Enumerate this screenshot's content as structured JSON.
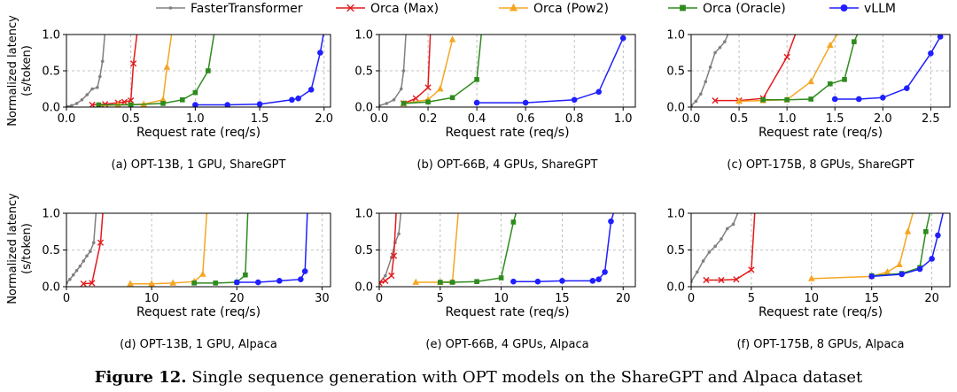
{
  "legend": [
    {
      "name": "FasterTransformer",
      "color": "#808080",
      "marker": "dot"
    },
    {
      "name": "Orca (Max)",
      "color": "#e41a1c",
      "marker": "x"
    },
    {
      "name": "Orca (Pow2)",
      "color": "#f5a623",
      "marker": "triangle"
    },
    {
      "name": "Orca (Oracle)",
      "color": "#2e8b1e",
      "marker": "square"
    },
    {
      "name": "vLLM",
      "color": "#1f1fff",
      "marker": "circle"
    }
  ],
  "ylabel_line1": "Normalized latency",
  "ylabel_line2": "(s/token)",
  "figure_caption": {
    "label": "Figure 12.",
    "text": " Single sequence generation with OPT models on the ShareGPT and Alpaca dataset"
  },
  "chart_data": [
    {
      "type": "line",
      "subtitle": "(a) OPT-13B, 1 GPU, ShareGPT",
      "xlabel": "Request rate (req/s)",
      "ylabel": "Normalized latency (s/token)",
      "xlim": [
        0.0,
        2.05
      ],
      "ylim": [
        0.0,
        1.0
      ],
      "xticks": [
        0.0,
        0.5,
        1.0,
        1.5,
        2.0
      ],
      "xtick_labels": [
        "0.0",
        "0.5",
        "1.0",
        "1.5",
        "2.0"
      ],
      "yticks": [
        0.0,
        0.5,
        1.0
      ],
      "ytick_labels": [
        "0.0",
        "0.5",
        "1.0"
      ],
      "grid": true,
      "series": [
        {
          "name": "FasterTransformer",
          "x": [
            0.0,
            0.04,
            0.08,
            0.12,
            0.16,
            0.2,
            0.24,
            0.26,
            0.28,
            0.3
          ],
          "y": [
            0.01,
            0.02,
            0.05,
            0.1,
            0.17,
            0.25,
            0.27,
            0.42,
            0.63,
            1.05
          ]
        },
        {
          "name": "Orca (Max)",
          "x": [
            0.2,
            0.3,
            0.4,
            0.45,
            0.5,
            0.52,
            0.55
          ],
          "y": [
            0.03,
            0.04,
            0.06,
            0.07,
            0.09,
            0.6,
            1.05
          ]
        },
        {
          "name": "Orca (Pow2)",
          "x": [
            0.25,
            0.4,
            0.6,
            0.75,
            0.78,
            0.82
          ],
          "y": [
            0.02,
            0.03,
            0.04,
            0.1,
            0.55,
            1.05
          ]
        },
        {
          "name": "Orca (Oracle)",
          "x": [
            0.25,
            0.5,
            0.75,
            0.9,
            1.0,
            1.1,
            1.15
          ],
          "y": [
            0.03,
            0.03,
            0.05,
            0.1,
            0.2,
            0.5,
            1.05
          ]
        },
        {
          "name": "vLLM",
          "x": [
            1.0,
            1.25,
            1.5,
            1.75,
            1.8,
            1.9,
            1.97,
            2.0
          ],
          "y": [
            0.03,
            0.03,
            0.04,
            0.1,
            0.12,
            0.24,
            0.75,
            1.05
          ]
        }
      ]
    },
    {
      "type": "line",
      "subtitle": "(b) OPT-66B, 4 GPUs, ShareGPT",
      "xlabel": "Request rate (req/s)",
      "ylabel": "Normalized latency (s/token)",
      "xlim": [
        0.0,
        1.05
      ],
      "ylim": [
        0.0,
        1.0
      ],
      "xticks": [
        0.0,
        0.2,
        0.4,
        0.6,
        0.8,
        1.0
      ],
      "xtick_labels": [
        "0.0",
        "0.2",
        "0.4",
        "0.6",
        "0.8",
        "1.0"
      ],
      "yticks": [
        0.0,
        0.5,
        1.0
      ],
      "ytick_labels": [
        "0.0",
        "0.5",
        "1.0"
      ],
      "grid": true,
      "series": [
        {
          "name": "FasterTransformer",
          "x": [
            0.0,
            0.03,
            0.06,
            0.09,
            0.1,
            0.11
          ],
          "y": [
            0.02,
            0.05,
            0.1,
            0.25,
            0.5,
            1.05
          ]
        },
        {
          "name": "Orca (Max)",
          "x": [
            0.1,
            0.15,
            0.2,
            0.21
          ],
          "y": [
            0.05,
            0.12,
            0.27,
            1.05
          ]
        },
        {
          "name": "Orca (Pow2)",
          "x": [
            0.1,
            0.2,
            0.25,
            0.3
          ],
          "y": [
            0.05,
            0.1,
            0.25,
            0.93
          ]
        },
        {
          "name": "Orca (Oracle)",
          "x": [
            0.1,
            0.2,
            0.3,
            0.4,
            0.42
          ],
          "y": [
            0.05,
            0.07,
            0.13,
            0.38,
            1.05
          ]
        },
        {
          "name": "vLLM",
          "x": [
            0.4,
            0.6,
            0.8,
            0.9,
            1.0
          ],
          "y": [
            0.06,
            0.06,
            0.1,
            0.21,
            0.95
          ]
        }
      ]
    },
    {
      "type": "line",
      "subtitle": "(c) OPT-175B, 8 GPUs, ShareGPT",
      "xlabel": "Request rate (req/s)",
      "ylabel": "Normalized latency (s/token)",
      "xlim": [
        0.0,
        2.7
      ],
      "ylim": [
        0.0,
        1.0
      ],
      "xticks": [
        0.0,
        0.5,
        1.0,
        1.5,
        2.0,
        2.5
      ],
      "xtick_labels": [
        "0.0",
        "0.5",
        "1.0",
        "1.5",
        "2.0",
        "2.5"
      ],
      "yticks": [
        0.0,
        0.5,
        1.0
      ],
      "ytick_labels": [
        "0.0",
        "0.5",
        "1.0"
      ],
      "grid": true,
      "series": [
        {
          "name": "FasterTransformer",
          "x": [
            0.0,
            0.05,
            0.1,
            0.15,
            0.2,
            0.25,
            0.3,
            0.35,
            0.4
          ],
          "y": [
            0.02,
            0.08,
            0.18,
            0.35,
            0.55,
            0.75,
            0.82,
            0.9,
            1.05
          ]
        },
        {
          "name": "Orca (Max)",
          "x": [
            0.25,
            0.5,
            0.75,
            1.0,
            1.1
          ],
          "y": [
            0.09,
            0.09,
            0.12,
            0.69,
            1.05
          ]
        },
        {
          "name": "Orca (Pow2)",
          "x": [
            0.5,
            0.75,
            1.0,
            1.25,
            1.45,
            1.55
          ],
          "y": [
            0.08,
            0.09,
            0.1,
            0.35,
            0.85,
            1.05
          ]
        },
        {
          "name": "Orca (Oracle)",
          "x": [
            0.75,
            1.0,
            1.25,
            1.45,
            1.6,
            1.7,
            1.75
          ],
          "y": [
            0.1,
            0.1,
            0.11,
            0.32,
            0.38,
            0.9,
            1.05
          ]
        },
        {
          "name": "vLLM",
          "x": [
            1.5,
            1.75,
            2.0,
            2.25,
            2.5,
            2.6
          ],
          "y": [
            0.11,
            0.11,
            0.13,
            0.26,
            0.74,
            0.97
          ]
        }
      ]
    },
    {
      "type": "line",
      "subtitle": "(d) OPT-13B, 1 GPU, Alpaca",
      "xlabel": "Request rate (req/s)",
      "ylabel": "Normalized latency (s/token)",
      "xlim": [
        0,
        31
      ],
      "ylim": [
        0.0,
        1.0
      ],
      "xticks": [
        0,
        10,
        20,
        30
      ],
      "xtick_labels": [
        "0",
        "10",
        "20",
        "30"
      ],
      "yticks": [
        0.0,
        0.5,
        1.0
      ],
      "ytick_labels": [
        "0.0",
        "0.5",
        "1.0"
      ],
      "grid": true,
      "series": [
        {
          "name": "FasterTransformer",
          "x": [
            0.0,
            0.4,
            0.8,
            1.2,
            1.6,
            2.0,
            2.4,
            2.8,
            3.2,
            3.5
          ],
          "y": [
            0.05,
            0.1,
            0.16,
            0.22,
            0.28,
            0.35,
            0.42,
            0.48,
            0.6,
            1.05
          ]
        },
        {
          "name": "Orca (Max)",
          "x": [
            2.0,
            3.0,
            4.0,
            4.3
          ],
          "y": [
            0.04,
            0.05,
            0.6,
            1.05
          ]
        },
        {
          "name": "Orca (Pow2)",
          "x": [
            7.5,
            10.0,
            12.5,
            15.0,
            16.0,
            16.5
          ],
          "y": [
            0.04,
            0.04,
            0.05,
            0.07,
            0.17,
            1.05
          ]
        },
        {
          "name": "Orca (Oracle)",
          "x": [
            15.0,
            17.5,
            20.0,
            21.0,
            21.3
          ],
          "y": [
            0.05,
            0.05,
            0.06,
            0.16,
            1.05
          ]
        },
        {
          "name": "vLLM",
          "x": [
            20.0,
            22.5,
            25.0,
            27.5,
            28.0,
            28.3
          ],
          "y": [
            0.06,
            0.06,
            0.08,
            0.1,
            0.21,
            1.05
          ]
        }
      ]
    },
    {
      "type": "line",
      "subtitle": "(e) OPT-66B, 4 GPUs, Alpaca",
      "xlabel": "Request rate (req/s)",
      "ylabel": "Normalized latency (s/token)",
      "xlim": [
        0,
        21
      ],
      "ylim": [
        0.0,
        1.0
      ],
      "xticks": [
        0,
        5,
        10,
        15,
        20
      ],
      "xtick_labels": [
        "0",
        "5",
        "10",
        "15",
        "20"
      ],
      "yticks": [
        0.0,
        0.5,
        1.0
      ],
      "ytick_labels": [
        "0.0",
        "0.5",
        "1.0"
      ],
      "grid": true,
      "series": [
        {
          "name": "FasterTransformer",
          "x": [
            0.0,
            0.5,
            1.0,
            1.3,
            1.6,
            1.8
          ],
          "y": [
            0.05,
            0.15,
            0.4,
            0.6,
            0.72,
            1.05
          ]
        },
        {
          "name": "Orca (Max)",
          "x": [
            0.0,
            0.5,
            1.0,
            1.2,
            1.4
          ],
          "y": [
            0.05,
            0.08,
            0.15,
            0.42,
            1.05
          ]
        },
        {
          "name": "Orca (Pow2)",
          "x": [
            3.0,
            5.0,
            6.0,
            6.5
          ],
          "y": [
            0.06,
            0.06,
            0.07,
            1.05
          ]
        },
        {
          "name": "Orca (Oracle)",
          "x": [
            5.0,
            6.0,
            8.0,
            10.0,
            11.0,
            11.3
          ],
          "y": [
            0.06,
            0.06,
            0.07,
            0.12,
            0.88,
            1.05
          ]
        },
        {
          "name": "vLLM",
          "x": [
            11.0,
            13.0,
            15.0,
            17.5,
            18.0,
            18.5,
            19.0,
            19.3
          ],
          "y": [
            0.07,
            0.07,
            0.08,
            0.08,
            0.1,
            0.2,
            0.89,
            1.05
          ]
        }
      ]
    },
    {
      "type": "line",
      "subtitle": "(f) OPT-175B, 8 GPUs, Alpaca",
      "xlabel": "Request rate (req/s)",
      "ylabel": "Normalized latency (s/token)",
      "xlim": [
        0,
        21.5
      ],
      "ylim": [
        0.0,
        1.0
      ],
      "xticks": [
        0,
        5,
        10,
        15,
        20
      ],
      "xtick_labels": [
        "0",
        "5",
        "10",
        "15",
        "20"
      ],
      "yticks": [
        0.0,
        0.5,
        1.0
      ],
      "ytick_labels": [
        "0.0",
        "0.5",
        "1.0"
      ],
      "grid": true,
      "series": [
        {
          "name": "FasterTransformer",
          "x": [
            0.0,
            0.5,
            1.0,
            1.5,
            2.0,
            2.5,
            3.0,
            3.5,
            4.0
          ],
          "y": [
            0.07,
            0.2,
            0.35,
            0.47,
            0.55,
            0.65,
            0.79,
            0.85,
            1.05
          ]
        },
        {
          "name": "Orca (Max)",
          "x": [
            1.25,
            2.5,
            3.75,
            5.0,
            5.3
          ],
          "y": [
            0.09,
            0.09,
            0.1,
            0.23,
            1.05
          ]
        },
        {
          "name": "Orca (Pow2)",
          "x": [
            10.0,
            15.0,
            16.3,
            17.3,
            18.0,
            18.5
          ],
          "y": [
            0.11,
            0.14,
            0.2,
            0.3,
            0.75,
            1.05
          ]
        },
        {
          "name": "Orca (Oracle)",
          "x": [
            15.0,
            17.5,
            19.0,
            19.5,
            19.9
          ],
          "y": [
            0.15,
            0.18,
            0.26,
            0.75,
            1.05
          ]
        },
        {
          "name": "vLLM",
          "x": [
            15.0,
            17.5,
            19.0,
            20.0,
            20.5,
            21.0
          ],
          "y": [
            0.14,
            0.17,
            0.24,
            0.38,
            0.7,
            1.05
          ]
        }
      ]
    }
  ]
}
